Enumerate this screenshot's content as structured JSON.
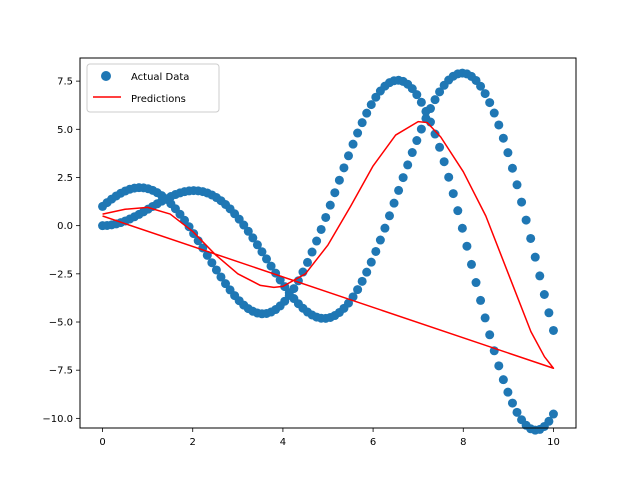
{
  "chart_data": {
    "type": "scatter",
    "title": "",
    "xlabel": "",
    "ylabel": "",
    "xlim": [
      -0.5,
      10.5
    ],
    "ylim": [
      -10.5,
      8.7
    ],
    "xticks": [
      0,
      2,
      4,
      6,
      8,
      10
    ],
    "xtick_labels": [
      "0",
      "2",
      "4",
      "6",
      "8",
      "10"
    ],
    "yticks": [
      -10.0,
      -7.5,
      -5.0,
      -2.5,
      0.0,
      2.5,
      5.0,
      7.5
    ],
    "ytick_labels": [
      "−10.0",
      "−7.5",
      "−5.0",
      "−2.5",
      "0.0",
      "2.5",
      "5.0",
      "7.5"
    ],
    "grid": false,
    "legend_position": "top-left",
    "series": [
      {
        "name": "Actual Data",
        "kind": "scatter",
        "color": "#1f77b4",
        "sampling": "100 points per curve, x from 0 to 10",
        "curves": [
          {
            "formula": "x * sin(x)"
          },
          {
            "formula": "x * cos(x) + sin(x) + cos(x)"
          }
        ]
      },
      {
        "name": "Predictions",
        "kind": "line",
        "color": "#ff0000",
        "closed_loop": true,
        "x": [
          0.0,
          0.5,
          1.0,
          1.5,
          2.0,
          2.5,
          3.0,
          3.5,
          3.8,
          4.0,
          4.5,
          5.0,
          5.5,
          6.0,
          6.5,
          7.0,
          7.2,
          7.5,
          8.0,
          8.5,
          9.0,
          9.5,
          9.8,
          10.0,
          0.0
        ],
        "y": [
          0.6,
          0.85,
          0.95,
          0.6,
          -0.3,
          -1.5,
          -2.5,
          -3.1,
          -3.2,
          -3.15,
          -2.5,
          -1.0,
          1.0,
          3.1,
          4.7,
          5.4,
          5.35,
          4.6,
          2.8,
          0.5,
          -2.5,
          -5.5,
          -6.8,
          -7.4,
          0.5
        ]
      }
    ]
  }
}
